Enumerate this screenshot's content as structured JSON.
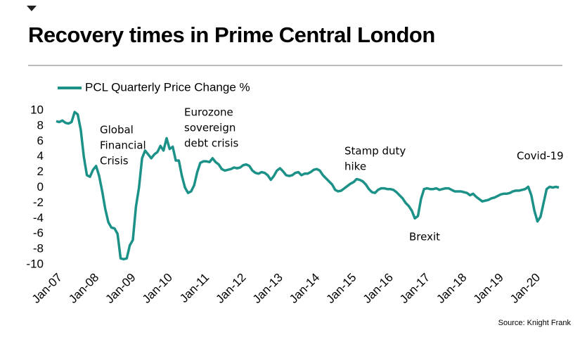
{
  "chart_data": {
    "type": "line",
    "title": "Recovery times in Prime Central London",
    "source": "Source: Knight Frank",
    "categories": [
      "Jan-07",
      null,
      null,
      null,
      null,
      null,
      null,
      null,
      null,
      null,
      null,
      null,
      "Jan-08",
      null,
      null,
      null,
      null,
      null,
      null,
      null,
      null,
      null,
      null,
      null,
      "Jan-09",
      null,
      null,
      null,
      null,
      null,
      null,
      null,
      null,
      null,
      null,
      null,
      "Jan-10",
      null,
      null,
      null,
      null,
      null,
      null,
      null,
      null,
      null,
      null,
      null,
      "Jan-11",
      null,
      null,
      null,
      null,
      null,
      null,
      null,
      null,
      null,
      null,
      null,
      "Jan-12",
      null,
      null,
      null,
      null,
      null,
      null,
      null,
      null,
      null,
      null,
      null,
      "Jan-13",
      null,
      null,
      null,
      null,
      null,
      null,
      null,
      null,
      null,
      null,
      null,
      "Jan-14",
      null,
      null,
      null,
      null,
      null,
      null,
      null,
      null,
      null,
      null,
      null,
      "Jan-15",
      null,
      null,
      null,
      null,
      null,
      null,
      null,
      null,
      null,
      null,
      null,
      "Jan-16",
      null,
      null,
      null,
      null,
      null,
      null,
      null,
      null,
      null,
      null,
      null,
      "Jan-17",
      null,
      null,
      null,
      null,
      null,
      null,
      null,
      null,
      null,
      null,
      null,
      "Jan-18",
      null,
      null,
      null,
      null,
      null,
      null,
      null,
      null,
      null,
      null,
      null,
      "Jan-19",
      null,
      null,
      null,
      null,
      null,
      null,
      null,
      null,
      null,
      null,
      null,
      "Jan-20",
      null,
      null,
      null,
      null,
      null,
      null,
      null,
      null
    ],
    "series": [
      {
        "name": "PCL Quarterly Price Change %",
        "color": "#1b9188",
        "values": [
          8.6,
          8.5,
          8.7,
          8.4,
          8.3,
          8.5,
          9.8,
          9.5,
          7.5,
          4.0,
          1.6,
          1.4,
          2.3,
          2.8,
          1.5,
          -0.5,
          -2.8,
          -4.5,
          -5.2,
          -5.3,
          -6.0,
          -9.2,
          -9.3,
          -9.2,
          -7.5,
          -6.8,
          -2.5,
          0.0,
          3.8,
          4.8,
          4.3,
          3.8,
          4.3,
          4.6,
          5.4,
          4.8,
          6.4,
          5.0,
          5.3,
          3.5,
          3.5,
          1.5,
          0.0,
          -0.7,
          -0.5,
          0.3,
          2.0,
          3.2,
          3.4,
          3.4,
          3.3,
          3.8,
          3.3,
          3.0,
          2.4,
          2.2,
          2.3,
          2.4,
          2.6,
          2.5,
          2.6,
          2.9,
          3.0,
          2.8,
          2.2,
          1.9,
          1.8,
          2.0,
          1.9,
          1.6,
          1.0,
          1.5,
          2.2,
          2.5,
          2.1,
          1.6,
          1.5,
          1.6,
          1.9,
          2.0,
          1.6,
          1.8,
          1.8,
          2.0,
          2.3,
          2.4,
          2.2,
          1.6,
          1.2,
          0.8,
          0.4,
          -0.3,
          -0.5,
          -0.4,
          -0.1,
          0.2,
          0.5,
          0.7,
          1.1,
          1.0,
          0.8,
          0.4,
          -0.2,
          -0.6,
          -0.7,
          -0.3,
          -0.1,
          -0.1,
          -0.2,
          -0.2,
          -0.3,
          -0.6,
          -1.0,
          -1.4,
          -2.0,
          -2.4,
          -3.0,
          -4.0,
          -3.7,
          -1.5,
          -0.2,
          -0.1,
          -0.2,
          -0.2,
          -0.1,
          -0.3,
          -0.2,
          -0.1,
          -0.1,
          -0.3,
          -0.5,
          -0.5,
          -0.5,
          -0.6,
          -0.7,
          -1.0,
          -0.8,
          -1.2,
          -1.5,
          -1.8,
          -1.7,
          -1.6,
          -1.4,
          -1.3,
          -1.1,
          -0.9,
          -0.8,
          -0.8,
          -0.7,
          -0.5,
          -0.4,
          -0.4,
          -0.3,
          -0.2,
          0.1,
          -1.0,
          -3.0,
          -4.4,
          -3.8,
          -2.0,
          -0.2,
          0.1,
          0.0,
          0.1,
          0.0
        ]
      }
    ],
    "ylim": [
      -10,
      10
    ],
    "yticks": [
      10,
      8,
      6,
      4,
      2,
      0,
      -2,
      -4,
      -6,
      -8,
      -10
    ],
    "grid": false,
    "legend": "top-left",
    "annotations": [
      [
        "Global",
        "Financial",
        "Crisis"
      ],
      [
        "Eurozone",
        "sovereign",
        "debt crisis"
      ],
      [
        "Stamp duty",
        "hike"
      ],
      [
        "Brexit"
      ],
      [
        "Covid-19"
      ]
    ]
  }
}
